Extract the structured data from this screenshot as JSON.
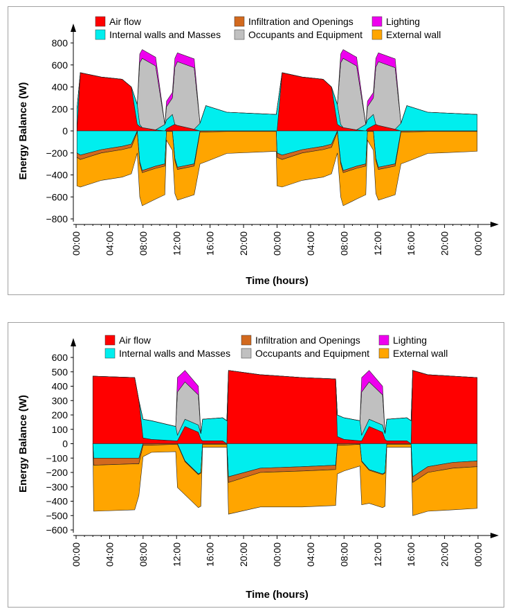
{
  "legend": [
    {
      "key": "air_flow",
      "label": "Air flow",
      "color": "#ff0000"
    },
    {
      "key": "internal",
      "label": "Internal walls and Masses",
      "color": "#00eeee"
    },
    {
      "key": "infiltration",
      "label": "Infiltration and Openings",
      "color": "#d2691e"
    },
    {
      "key": "occupants",
      "label": "Occupants and Equipment",
      "color": "#c0c0c0"
    },
    {
      "key": "lighting",
      "label": "Lighting",
      "color": "#ee00ee"
    },
    {
      "key": "external",
      "label": "External wall",
      "color": "#ffa500"
    }
  ],
  "chart_data": [
    {
      "type": "area",
      "stacked": true,
      "xlabel": "Time (hours)",
      "ylabel": "Energy Balance (W)",
      "xlim": [
        0,
        48
      ],
      "ylim": [
        -800,
        800
      ],
      "yticks": [
        -800,
        -600,
        -400,
        -200,
        0,
        200,
        400,
        600,
        800
      ],
      "xticks": [
        0,
        4,
        8,
        12,
        16,
        20,
        24,
        28,
        32,
        36,
        40,
        44,
        48
      ],
      "xtick_labels": [
        "00:00",
        "04:00",
        "08:00",
        "12:00",
        "16:00",
        "20:00",
        "00:00",
        "04:00",
        "08:00",
        "12:00",
        "16:00",
        "20:00",
        "00:00"
      ],
      "legend_position": "top",
      "x": [
        0.1,
        0.5,
        3,
        5.5,
        6.6,
        7.3,
        7.6,
        7.9,
        9.5,
        10.6,
        10.8,
        11.5,
        11.8,
        12.1,
        14.1,
        14.8,
        15.5,
        18,
        23.9,
        24,
        24.6,
        27,
        29.5,
        30.5,
        31.2,
        31.6,
        31.9,
        33.5,
        34.6,
        34.8,
        35.5,
        35.8,
        36.1,
        38.1,
        38.8,
        39.5,
        42,
        47.9
      ],
      "series": [
        {
          "name": "Air flow",
          "values": [
            0,
            530,
            490,
            470,
            400,
            60,
            40,
            30,
            10,
            0,
            20,
            50,
            60,
            50,
            15,
            0,
            0,
            0,
            0,
            0,
            530,
            490,
            470,
            400,
            60,
            40,
            30,
            10,
            0,
            20,
            50,
            60,
            50,
            15,
            0,
            0,
            0,
            0
          ]
        },
        {
          "name": "Internal walls and Masses",
          "values": [
            200,
            0,
            0,
            0,
            0,
            180,
            20,
            0,
            0,
            60,
            80,
            100,
            0,
            0,
            0,
            70,
            230,
            170,
            150,
            200,
            0,
            0,
            0,
            0,
            180,
            20,
            0,
            0,
            60,
            80,
            100,
            0,
            0,
            0,
            70,
            230,
            170,
            150
          ]
        },
        {
          "name": "Occupants and Equipment",
          "values": [
            0,
            0,
            0,
            0,
            0,
            0,
            560,
            630,
            580,
            0,
            120,
            150,
            520,
            580,
            560,
            0,
            0,
            0,
            0,
            0,
            0,
            0,
            0,
            0,
            0,
            560,
            630,
            580,
            0,
            120,
            150,
            520,
            580,
            560,
            0,
            0,
            0,
            0
          ]
        },
        {
          "name": "Lighting",
          "values": [
            0,
            0,
            0,
            0,
            0,
            0,
            80,
            80,
            80,
            0,
            50,
            50,
            80,
            80,
            80,
            0,
            0,
            0,
            0,
            0,
            0,
            0,
            0,
            0,
            0,
            80,
            80,
            80,
            0,
            50,
            50,
            80,
            80,
            80,
            0,
            0,
            0,
            0
          ]
        },
        {
          "name": "Internal walls and Masses (loss)",
          "values": [
            -200,
            -220,
            -170,
            -140,
            -120,
            0,
            -280,
            -360,
            -320,
            -300,
            0,
            0,
            -250,
            -330,
            -300,
            0,
            0,
            0,
            0,
            -200,
            -220,
            -170,
            -140,
            -120,
            0,
            -280,
            -360,
            -320,
            -300,
            0,
            0,
            -250,
            -330,
            -300,
            0,
            0,
            0,
            0
          ]
        },
        {
          "name": "Infiltration and Openings",
          "values": [
            -40,
            -40,
            -30,
            -30,
            -30,
            -10,
            -20,
            -20,
            -20,
            -20,
            -5,
            -5,
            -20,
            -20,
            -20,
            -10,
            -10,
            -5,
            -5,
            -40,
            -40,
            -30,
            -30,
            -30,
            -10,
            -20,
            -20,
            -20,
            -20,
            -5,
            -5,
            -20,
            -20,
            -20,
            -10,
            -10,
            -5,
            -5
          ]
        },
        {
          "name": "External wall",
          "values": [
            -260,
            -250,
            -250,
            -250,
            -240,
            -190,
            -300,
            -300,
            -280,
            -260,
            -80,
            -170,
            -300,
            -280,
            -260,
            -290,
            -270,
            -200,
            -180,
            -260,
            -250,
            -250,
            -250,
            -240,
            -190,
            -300,
            -300,
            -280,
            -260,
            -80,
            -170,
            -300,
            -280,
            -260,
            -290,
            -270,
            -200,
            -180
          ]
        }
      ]
    },
    {
      "type": "area",
      "stacked": true,
      "xlabel": "Time (hours)",
      "ylabel": "Energy Balance (W)",
      "xlim": [
        0,
        48
      ],
      "ylim": [
        -600,
        600
      ],
      "yticks": [
        -600,
        -500,
        -400,
        -300,
        -200,
        -100,
        0,
        100,
        200,
        300,
        400,
        500,
        600
      ],
      "xticks": [
        0,
        4,
        8,
        12,
        16,
        20,
        24,
        28,
        32,
        36,
        40,
        44,
        48
      ],
      "xtick_labels": [
        "00:00",
        "04:00",
        "08:00",
        "12:00",
        "16:00",
        "20:00",
        "00:00",
        "04:00",
        "08:00",
        "12:00",
        "16:00",
        "20:00",
        "00:00"
      ],
      "legend_position": "top",
      "x": [
        2,
        2.1,
        7,
        7.5,
        8,
        9,
        11.9,
        12.1,
        13,
        14.6,
        14.9,
        15.1,
        17.5,
        18,
        18.2,
        22,
        27,
        31,
        31.2,
        32,
        33.9,
        34.1,
        35,
        36.6,
        36.9,
        37.1,
        39.5,
        40,
        40.2,
        42,
        45,
        47.9
      ],
      "series": [
        {
          "name": "Air flow",
          "values": [
            470,
            470,
            460,
            300,
            40,
            30,
            20,
            20,
            120,
            80,
            30,
            20,
            20,
            0,
            510,
            480,
            460,
            450,
            50,
            30,
            20,
            20,
            120,
            80,
            30,
            20,
            20,
            0,
            510,
            480,
            470,
            460
          ]
        },
        {
          "name": "Internal walls and Masses",
          "values": [
            0,
            0,
            0,
            0,
            130,
            130,
            100,
            40,
            50,
            50,
            40,
            150,
            160,
            160,
            0,
            0,
            0,
            0,
            150,
            150,
            140,
            40,
            50,
            50,
            40,
            150,
            160,
            160,
            0,
            0,
            0,
            0
          ]
        },
        {
          "name": "Occupants and Equipment",
          "values": [
            0,
            0,
            0,
            0,
            0,
            0,
            0,
            300,
            260,
            210,
            0,
            0,
            0,
            0,
            0,
            0,
            0,
            0,
            0,
            0,
            0,
            300,
            260,
            210,
            0,
            0,
            0,
            0,
            0,
            0,
            0,
            0
          ]
        },
        {
          "name": "Lighting",
          "values": [
            0,
            0,
            0,
            0,
            0,
            0,
            0,
            100,
            80,
            60,
            0,
            0,
            0,
            0,
            0,
            0,
            0,
            0,
            0,
            0,
            0,
            100,
            80,
            60,
            0,
            0,
            0,
            0,
            0,
            0,
            0,
            0
          ]
        },
        {
          "name": "Internal walls and Masses (loss)",
          "values": [
            0,
            -100,
            -100,
            -100,
            0,
            0,
            0,
            0,
            -120,
            -210,
            -200,
            0,
            0,
            0,
            -230,
            -170,
            -160,
            -150,
            0,
            0,
            0,
            -120,
            -180,
            -210,
            -200,
            0,
            0,
            0,
            -230,
            -160,
            -130,
            -120
          ]
        },
        {
          "name": "Infiltration and Openings",
          "values": [
            0,
            -50,
            -40,
            -40,
            -10,
            -10,
            -5,
            -5,
            -5,
            -5,
            -5,
            -5,
            -5,
            -5,
            -40,
            -30,
            -30,
            -30,
            -10,
            -10,
            -5,
            -5,
            -5,
            -5,
            -5,
            -5,
            -5,
            -5,
            -40,
            -40,
            -40,
            -40
          ]
        },
        {
          "name": "External wall",
          "values": [
            0,
            -320,
            -320,
            -220,
            -80,
            -50,
            -50,
            -300,
            -230,
            -230,
            -230,
            -20,
            -20,
            -20,
            -220,
            -240,
            -250,
            -250,
            -200,
            -180,
            -150,
            -300,
            -230,
            -230,
            -230,
            -20,
            -20,
            -20,
            -230,
            -270,
            -290,
            -290
          ]
        }
      ]
    }
  ]
}
